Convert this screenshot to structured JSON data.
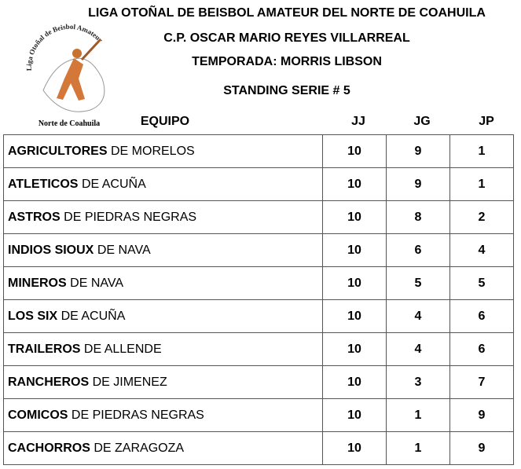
{
  "logo": {
    "arc_text": "Liga Otoñal de Beisbol Amateur",
    "bottom_text": "Norte de Coahuila"
  },
  "header": {
    "line1": "LIGA OTOÑAL DE BEISBOL AMATEUR DEL NORTE DE COAHUILA",
    "line2": "C.P. OSCAR MARIO REYES VILLARREAL",
    "line3": "TEMPORADA: MORRIS LIBSON",
    "line4": "STANDING SERIE # 5"
  },
  "table": {
    "columns": [
      "EQUIPO",
      "JJ",
      "JG",
      "JP"
    ],
    "rows": [
      {
        "name_bold": "AGRICULTORES",
        "name_rest": "DE MORELOS",
        "jj": 10,
        "jg": 9,
        "jp": 1
      },
      {
        "name_bold": "ATLETICOS",
        "name_rest": "DE ACUÑA",
        "jj": 10,
        "jg": 9,
        "jp": 1
      },
      {
        "name_bold": "ASTROS",
        "name_rest": "DE PIEDRAS NEGRAS",
        "jj": 10,
        "jg": 8,
        "jp": 2
      },
      {
        "name_bold": "INDIOS SIOUX",
        "name_rest": "DE NAVA",
        "jj": 10,
        "jg": 6,
        "jp": 4
      },
      {
        "name_bold": "MINEROS",
        "name_rest": "DE NAVA",
        "jj": 10,
        "jg": 5,
        "jp": 5
      },
      {
        "name_bold": "LOS SIX",
        "name_rest": "DE ACUÑA",
        "jj": 10,
        "jg": 4,
        "jp": 6
      },
      {
        "name_bold": "TRAILEROS",
        "name_rest": "DE ALLENDE",
        "jj": 10,
        "jg": 4,
        "jp": 6
      },
      {
        "name_bold": "RANCHEROS",
        "name_rest": "DE JIMENEZ",
        "jj": 10,
        "jg": 3,
        "jp": 7
      },
      {
        "name_bold": "COMICOS",
        "name_rest": "DE PIEDRAS NEGRAS",
        "jj": 10,
        "jg": 1,
        "jp": 9
      },
      {
        "name_bold": "CACHORROS",
        "name_rest": "DE ZARAGOZA",
        "jj": 10,
        "jg": 1,
        "jp": 9
      }
    ]
  }
}
